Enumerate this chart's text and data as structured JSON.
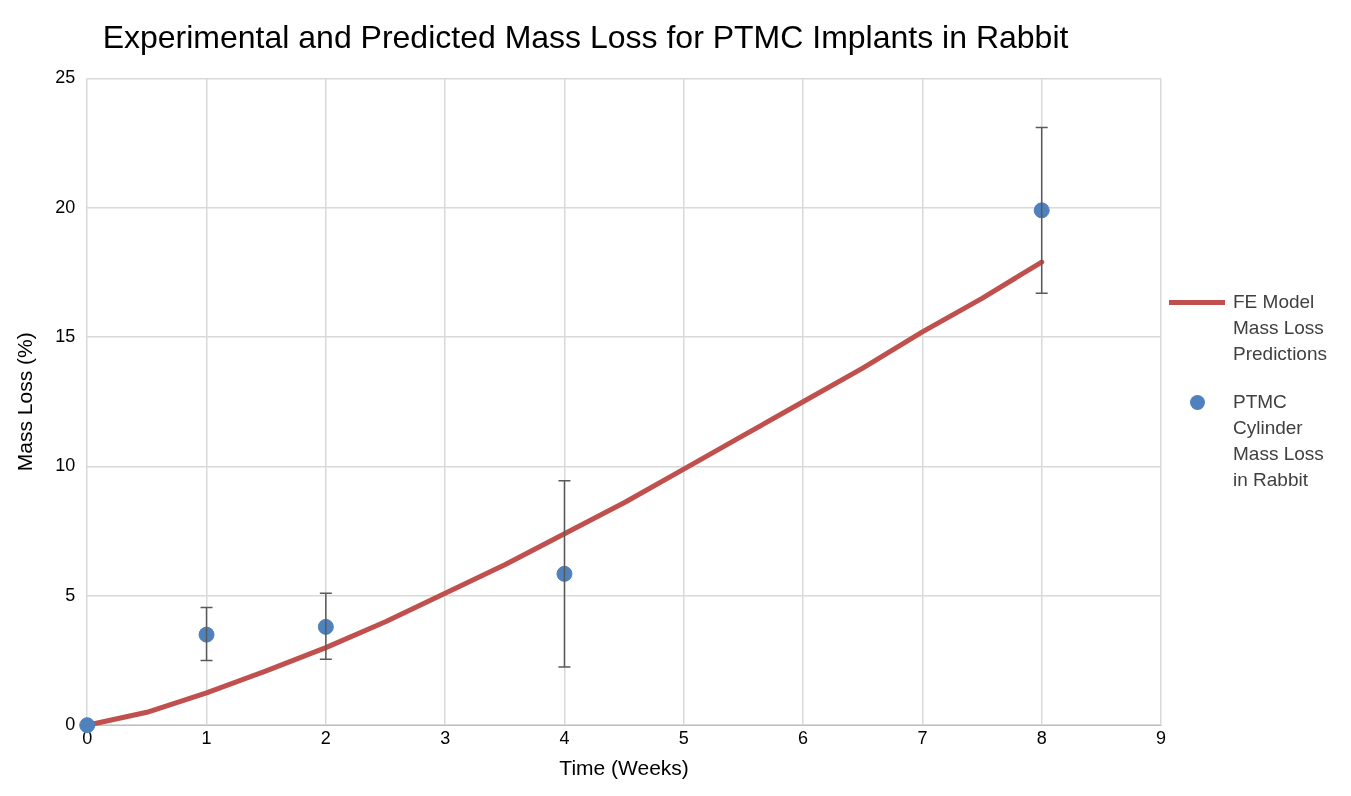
{
  "chart_data": {
    "type": "scatter",
    "title": "Experimental and Predicted Mass Loss for PTMC Implants in Rabbit",
    "xlabel": "Time (Weeks)",
    "ylabel": "Mass Loss (%)",
    "xlim": [
      0,
      9
    ],
    "xticks": [
      0,
      1,
      2,
      3,
      4,
      5,
      6,
      7,
      8,
      9
    ],
    "ylim": [
      0,
      25
    ],
    "yticks": [
      0,
      5,
      10,
      15,
      20,
      25
    ],
    "grid": true,
    "legend": "right",
    "series": [
      {
        "name": "FE Model Mass Loss Predictions",
        "type": "line",
        "color": "#c0504d",
        "marker": "none",
        "line_style": "solid",
        "x": [
          0,
          0.5,
          1,
          1.5,
          2,
          2.5,
          3,
          3.5,
          4,
          4.5,
          5,
          5.5,
          6,
          6.5,
          7,
          7.5,
          8
        ],
        "values": [
          0,
          0.5,
          1.25,
          2.1,
          3.0,
          4.0,
          5.1,
          6.2,
          7.4,
          8.6,
          9.9,
          11.2,
          12.5,
          13.8,
          15.2,
          16.5,
          17.9
        ]
      },
      {
        "name": "PTMC Cylinder Mass Loss in Rabbit",
        "color": "#4f81bd",
        "marker": "circle",
        "x": [
          0,
          1,
          2,
          4,
          8
        ],
        "values": [
          0,
          3.5,
          3.8,
          5.85,
          19.9
        ],
        "errors": [
          null,
          [
            2.5,
            4.55
          ],
          [
            2.55,
            5.1
          ],
          [
            2.25,
            9.45
          ],
          [
            16.7,
            23.1
          ]
        ]
      }
    ]
  }
}
